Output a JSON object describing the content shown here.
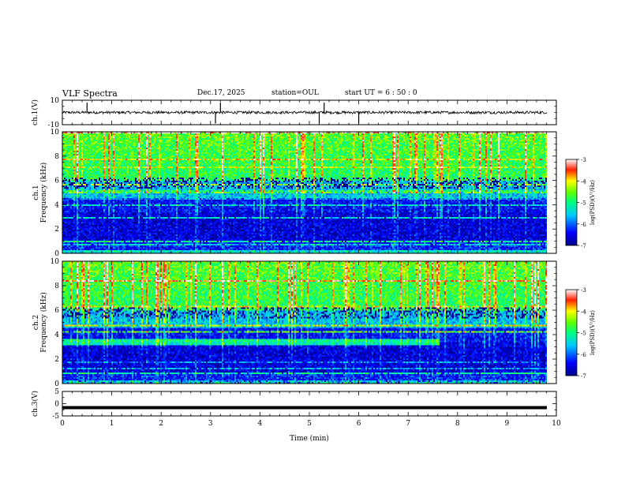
{
  "header": {
    "title": "VLF Spectra",
    "date": "Dec.17, 2025",
    "station": "station=OUL",
    "start": "start  UT =   6 : 50 : 0"
  },
  "colors": {
    "spectrogram_scale": [
      "#000080",
      "#0000ff",
      "#00a0ff",
      "#00ffff",
      "#00ff80",
      "#80ff00",
      "#ffff00",
      "#ff8000",
      "#ff0000",
      "#800000"
    ]
  },
  "chart_data": [
    {
      "type": "line",
      "panel": "ch1-waveform",
      "ylabel": "ch.1(V)",
      "ylim": [
        -10,
        10
      ],
      "yticks": [
        "10",
        "-10"
      ],
      "x_range": [
        0,
        9.8
      ],
      "baseline": 0,
      "spikes_at_min": [
        0.5,
        3.1,
        3.2,
        5.2,
        5.3,
        6.0
      ]
    },
    {
      "type": "heatmap",
      "panel": "ch1-spectrogram",
      "ylabel": "ch.1\nFrequency (kHz)",
      "ylim": [
        0,
        10
      ],
      "yticks": [
        "0",
        "2",
        "4",
        "6",
        "8",
        "10"
      ],
      "x_range": [
        0,
        9.8
      ],
      "colorbar_label": "log(PSD)(V²/Hz)",
      "colorbar_ticks": [
        "-3",
        "-4",
        "-5",
        "-6",
        "-7"
      ],
      "colorbar_range": [
        -7,
        -3
      ]
    },
    {
      "type": "heatmap",
      "panel": "ch2-spectrogram",
      "ylabel": "ch.2\nFrequency (kHz)",
      "ylim": [
        0,
        10
      ],
      "yticks": [
        "0",
        "2",
        "4",
        "6",
        "8",
        "10"
      ],
      "x_range": [
        0,
        9.8
      ],
      "colorbar_label": "log(PSD)(V²/Hz)",
      "colorbar_ticks": [
        "-3",
        "-4",
        "-5",
        "-6",
        "-7"
      ],
      "colorbar_range": [
        -7,
        -3
      ],
      "band_end_min": 7.65
    },
    {
      "type": "line",
      "panel": "ch3-waveform",
      "ylabel": "ch.3(V)",
      "ylim": [
        -5,
        5
      ],
      "yticks": [
        "5",
        "0",
        "-5"
      ],
      "x_range": [
        0,
        9.8
      ],
      "value": -1.6
    }
  ],
  "xaxis": {
    "label": "Time  (min)",
    "ticks": [
      "0",
      "1",
      "2",
      "3",
      "4",
      "5",
      "6",
      "7",
      "8",
      "9",
      "10"
    ],
    "xlim": [
      0,
      10
    ]
  }
}
